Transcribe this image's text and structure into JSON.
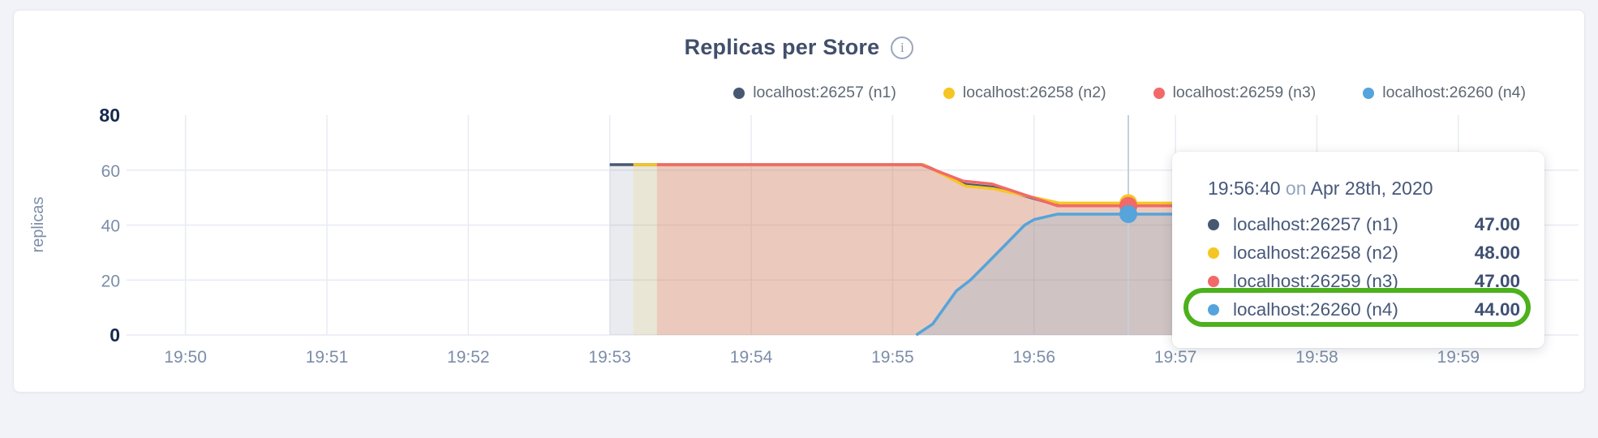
{
  "card": {
    "title": "Replicas per Store",
    "info_icon": "i"
  },
  "legend": {
    "items": [
      {
        "label": "localhost:26257 (n1)",
        "color": "#475872"
      },
      {
        "label": "localhost:26258 (n2)",
        "color": "#F5C623"
      },
      {
        "label": "localhost:26259 (n3)",
        "color": "#F26969"
      },
      {
        "label": "localhost:26260 (n4)",
        "color": "#55A4DB"
      }
    ]
  },
  "chart_data": {
    "type": "area",
    "title": "Replicas per Store",
    "ylabel": "replicas",
    "xlabel": "",
    "ylim": [
      0,
      80
    ],
    "y_ticks": [
      0,
      20,
      40,
      60,
      80
    ],
    "y_ticks_bold": [
      0,
      80
    ],
    "grid": "on",
    "legend_position": "top-right",
    "x_ticks": [
      "19:50",
      "19:51",
      "19:52",
      "19:53",
      "19:54",
      "19:55",
      "19:56",
      "19:57",
      "19:58",
      "19:59"
    ],
    "x_tick_seconds": [
      0,
      60,
      120,
      180,
      240,
      300,
      360,
      420,
      480,
      540
    ],
    "x_domain_seconds": [
      -25,
      591
    ],
    "x_unit": "seconds after 19:50",
    "series": [
      {
        "name": "localhost:26257 (n1)",
        "color": "#475872",
        "fill_opacity": 0.12,
        "points": [
          [
            180,
            62
          ],
          [
            313,
            62
          ],
          [
            331,
            54.8
          ],
          [
            343,
            53.8
          ],
          [
            371,
            47
          ],
          [
            425,
            47
          ]
        ]
      },
      {
        "name": "localhost:26258 (n2)",
        "color": "#F5C623",
        "fill_opacity": 0.12,
        "points": [
          [
            190,
            62
          ],
          [
            313,
            62
          ],
          [
            331,
            54.2
          ],
          [
            343,
            53.2
          ],
          [
            371,
            48
          ],
          [
            425,
            48
          ]
        ]
      },
      {
        "name": "localhost:26259 (n3)",
        "color": "#F26969",
        "fill_opacity": 0.22,
        "points": [
          [
            200,
            62
          ],
          [
            312,
            62
          ],
          [
            330,
            56
          ],
          [
            342,
            55
          ],
          [
            370,
            47
          ],
          [
            425,
            47
          ]
        ]
      },
      {
        "name": "localhost:26260 (n4)",
        "color": "#55A4DB",
        "fill_opacity": 0.18,
        "points": [
          [
            310,
            0
          ],
          [
            317,
            4
          ],
          [
            327,
            16
          ],
          [
            333,
            20
          ],
          [
            340,
            26
          ],
          [
            348,
            33
          ],
          [
            356,
            40
          ],
          [
            360,
            42
          ],
          [
            370,
            44
          ],
          [
            425,
            44
          ]
        ]
      }
    ],
    "hover": {
      "t": 400,
      "time_label": "19:56:40",
      "values": [
        47,
        48,
        47,
        44
      ]
    }
  },
  "tooltip": {
    "time": "19:56:40",
    "connector": "on",
    "date": "Apr 28th, 2020",
    "rows": [
      {
        "label": "localhost:26257 (n1)",
        "value": "47.00",
        "color": "#475872",
        "highlighted": false
      },
      {
        "label": "localhost:26258 (n2)",
        "value": "48.00",
        "color": "#F5C623",
        "highlighted": false
      },
      {
        "label": "localhost:26259 (n3)",
        "value": "47.00",
        "color": "#F26969",
        "highlighted": false
      },
      {
        "label": "localhost:26260 (n4)",
        "value": "44.00",
        "color": "#55A4DB",
        "highlighted": true
      }
    ],
    "highlight_color": "#4cb11c"
  }
}
